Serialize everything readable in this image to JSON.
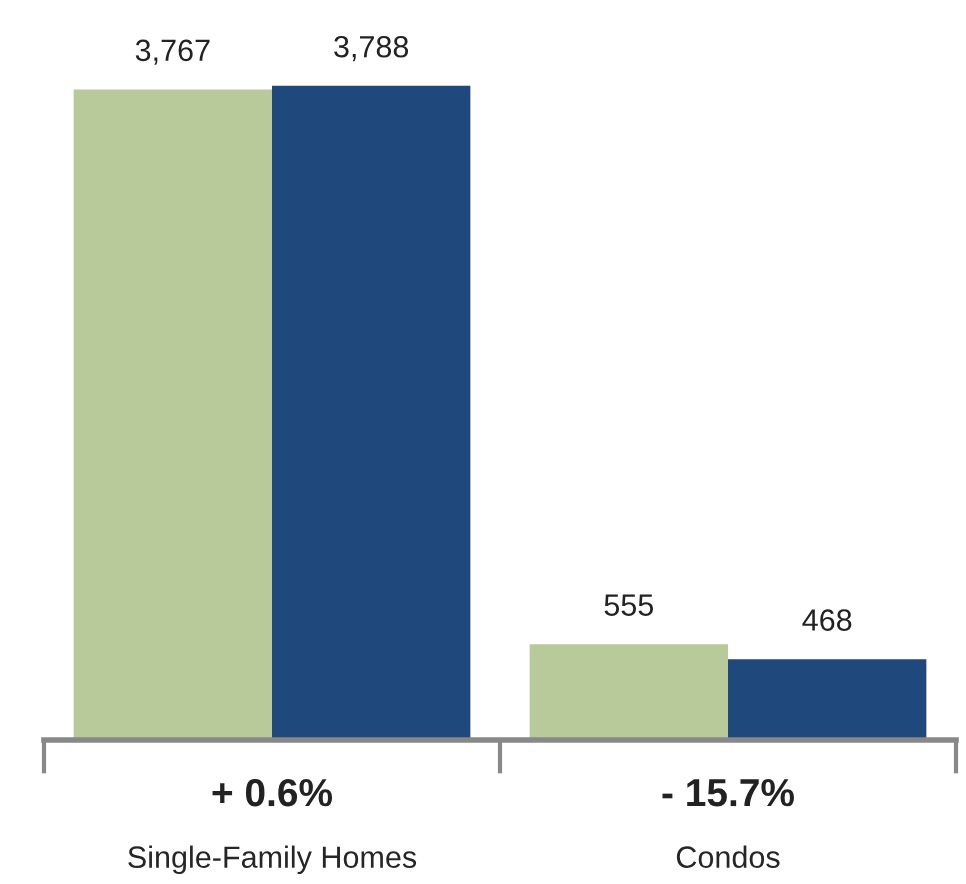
{
  "chart_data": {
    "type": "bar",
    "categories": [
      "Single-Family Homes",
      "Condos"
    ],
    "series": [
      {
        "color": "#b8c99a",
        "values": [
          3767,
          555
        ],
        "value_labels": [
          "3,767",
          "555"
        ]
      },
      {
        "color": "#1f497d",
        "values": [
          3788,
          468
        ],
        "value_labels": [
          "3,788",
          "468"
        ]
      }
    ],
    "annotations": [
      "+ 0.6%",
      "- 15.7%"
    ],
    "grid": false,
    "legend": false
  }
}
